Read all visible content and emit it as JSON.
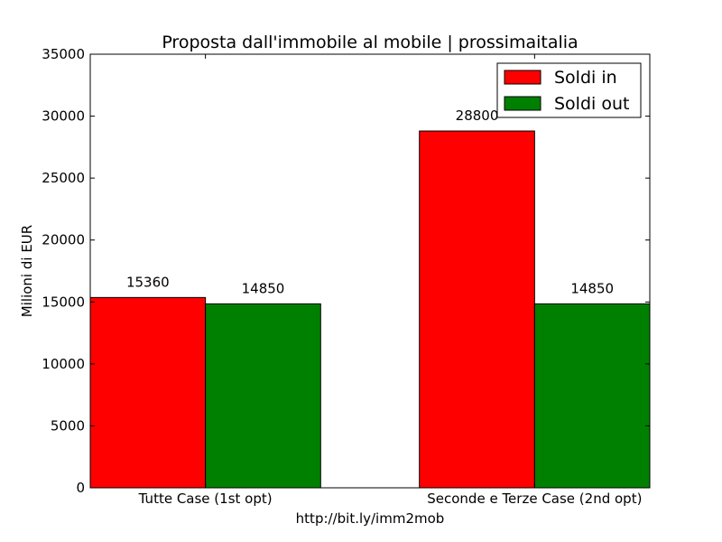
{
  "chart_data": {
    "type": "bar",
    "title": "Proposta dall'immobile al mobile | prossimaitalia",
    "xlabel": "http://bit.ly/imm2mob",
    "ylabel": "Milioni di EUR",
    "categories": [
      "Tutte Case (1st opt)",
      "Seconde e Terze Case (2nd opt)"
    ],
    "series": [
      {
        "name": "Soldi in",
        "values": [
          15360,
          28800
        ],
        "color": "#ff0000"
      },
      {
        "name": "Soldi out",
        "values": [
          14850,
          14850
        ],
        "color": "#008000"
      }
    ],
    "data_labels": [
      [
        "15360",
        "28800"
      ],
      [
        "14850",
        "14850"
      ]
    ],
    "ylim": [
      0,
      35000
    ],
    "yticks": [
      0,
      5000,
      10000,
      15000,
      20000,
      25000,
      30000,
      35000
    ],
    "grid": false,
    "legend": "top-right"
  }
}
